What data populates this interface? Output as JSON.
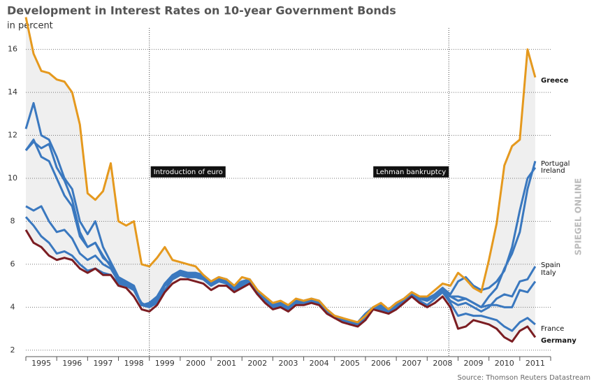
{
  "chart_data": {
    "type": "line",
    "title": "Development in Interest Rates on 10-year Government Bonds",
    "subtitle": "in percent",
    "source": "Source: Thomson Reuters Datastream",
    "watermark": "SPIEGEL ONLINE",
    "grid": true,
    "xlim": [
      1995,
      2012
    ],
    "xticks": [
      1995,
      1996,
      1997,
      1998,
      1999,
      2000,
      2001,
      2002,
      2003,
      2004,
      2005,
      2006,
      2007,
      2008,
      2009,
      2010,
      2011
    ],
    "ylim": [
      1.7,
      18.3
    ],
    "yticks": [
      2,
      4,
      6,
      8,
      10,
      12,
      14,
      16
    ],
    "annotations": [
      {
        "text": "Introduction of euro",
        "x": 1999,
        "y": 10.3
      },
      {
        "text": "Lehman bankruptcy",
        "x": 2008.7,
        "y": 10.3
      }
    ],
    "x": [
      1995,
      1995.25,
      1995.5,
      1995.75,
      1996,
      1996.25,
      1996.5,
      1996.75,
      1997,
      1997.25,
      1997.5,
      1997.75,
      1998,
      1998.25,
      1998.5,
      1998.75,
      1999,
      1999.25,
      1999.5,
      1999.75,
      2000,
      2000.25,
      2000.5,
      2000.75,
      2001,
      2001.25,
      2001.5,
      2001.75,
      2002,
      2002.25,
      2002.5,
      2002.75,
      2003,
      2003.25,
      2003.5,
      2003.75,
      2004,
      2004.25,
      2004.5,
      2004.75,
      2005,
      2005.25,
      2005.5,
      2005.75,
      2006,
      2006.25,
      2006.5,
      2006.75,
      2007,
      2007.25,
      2007.5,
      2007.75,
      2008,
      2008.25,
      2008.5,
      2008.75,
      2009,
      2009.25,
      2009.5,
      2009.75,
      2010,
      2010.25,
      2010.5,
      2010.75,
      2011,
      2011.25,
      2011.5
    ],
    "series": [
      {
        "name": "Greece",
        "color": "#e5991e",
        "values": [
          17.5,
          15.8,
          15.0,
          14.9,
          14.6,
          14.5,
          14.0,
          12.5,
          9.3,
          9.0,
          9.4,
          10.7,
          8.0,
          7.8,
          8.0,
          6.0,
          5.9,
          6.3,
          6.8,
          6.2,
          6.1,
          6.0,
          5.9,
          5.5,
          5.2,
          5.4,
          5.3,
          5.0,
          5.4,
          5.3,
          4.8,
          4.5,
          4.2,
          4.3,
          4.1,
          4.4,
          4.3,
          4.4,
          4.3,
          3.9,
          3.6,
          3.5,
          3.4,
          3.3,
          3.6,
          4.0,
          4.2,
          3.9,
          4.2,
          4.4,
          4.7,
          4.5,
          4.5,
          4.8,
          5.1,
          5.0,
          5.6,
          5.3,
          4.9,
          4.7,
          6.2,
          7.9,
          10.6,
          11.5,
          11.8,
          16.0,
          14.7
        ]
      },
      {
        "name": "Portugal",
        "color": "#3a78bf",
        "values": [
          11.3,
          11.7,
          11.4,
          11.6,
          10.5,
          9.9,
          9.0,
          7.5,
          6.8,
          7.0,
          6.3,
          6.0,
          5.3,
          5.1,
          4.9,
          4.1,
          4.2,
          4.5,
          5.1,
          5.4,
          5.6,
          5.6,
          5.5,
          5.4,
          5.1,
          5.3,
          5.3,
          5.0,
          5.2,
          5.2,
          4.8,
          4.4,
          4.1,
          4.2,
          4.0,
          4.3,
          4.2,
          4.3,
          4.2,
          3.8,
          3.5,
          3.4,
          3.2,
          3.3,
          3.6,
          3.9,
          4.0,
          3.8,
          4.1,
          4.3,
          4.6,
          4.4,
          4.3,
          4.5,
          4.8,
          4.5,
          4.3,
          4.4,
          4.2,
          4.0,
          4.5,
          4.9,
          5.8,
          6.5,
          7.5,
          9.5,
          10.8
        ]
      },
      {
        "name": "Ireland",
        "color": "#3a78bf",
        "values": [
          8.7,
          8.5,
          8.7,
          8.0,
          7.5,
          7.6,
          7.2,
          6.5,
          6.2,
          6.4,
          6.0,
          5.8,
          5.2,
          5.0,
          4.8,
          4.1,
          4.0,
          4.3,
          5.0,
          5.3,
          5.5,
          5.5,
          5.4,
          5.3,
          5.0,
          5.2,
          5.2,
          4.9,
          5.1,
          5.2,
          4.7,
          4.3,
          4.0,
          4.1,
          3.9,
          4.2,
          4.2,
          4.3,
          4.2,
          3.8,
          3.5,
          3.4,
          3.2,
          3.2,
          3.6,
          3.9,
          4.0,
          3.8,
          4.0,
          4.3,
          4.6,
          4.4,
          4.3,
          4.6,
          4.9,
          4.6,
          5.2,
          5.4,
          5.0,
          4.8,
          4.9,
          5.2,
          5.7,
          6.8,
          8.5,
          10.0,
          10.5
        ]
      },
      {
        "name": "Spain",
        "color": "#3a78bf",
        "values": [
          11.3,
          11.8,
          11.0,
          10.8,
          10.0,
          9.2,
          8.7,
          7.3,
          6.8,
          7.0,
          6.4,
          5.9,
          5.3,
          5.1,
          4.9,
          4.1,
          4.1,
          4.4,
          5.0,
          5.4,
          5.6,
          5.5,
          5.5,
          5.4,
          5.1,
          5.3,
          5.2,
          4.9,
          5.1,
          5.2,
          4.7,
          4.3,
          4.0,
          4.1,
          3.9,
          4.3,
          4.2,
          4.3,
          4.2,
          3.8,
          3.5,
          3.4,
          3.2,
          3.3,
          3.6,
          3.9,
          3.9,
          3.8,
          4.1,
          4.3,
          4.6,
          4.4,
          4.3,
          4.5,
          4.8,
          4.3,
          4.1,
          4.2,
          4.0,
          3.8,
          4.0,
          4.4,
          4.6,
          4.5,
          5.2,
          5.3,
          5.9
        ]
      },
      {
        "name": "Italy",
        "color": "#3a78bf",
        "values": [
          12.3,
          13.5,
          12.0,
          11.8,
          11.0,
          10.0,
          9.5,
          8.0,
          7.4,
          8.0,
          6.8,
          6.1,
          5.4,
          5.2,
          5.0,
          4.1,
          4.1,
          4.4,
          5.1,
          5.5,
          5.7,
          5.6,
          5.6,
          5.5,
          5.2,
          5.4,
          5.3,
          5.0,
          5.2,
          5.3,
          4.8,
          4.4,
          4.1,
          4.2,
          4.0,
          4.3,
          4.3,
          4.4,
          4.3,
          3.9,
          3.6,
          3.5,
          3.3,
          3.3,
          3.7,
          4.0,
          4.1,
          3.9,
          4.2,
          4.4,
          4.7,
          4.5,
          4.4,
          4.6,
          4.9,
          4.5,
          4.5,
          4.4,
          4.2,
          4.0,
          4.1,
          4.1,
          4.0,
          4.0,
          4.8,
          4.7,
          5.2
        ]
      },
      {
        "name": "France",
        "color": "#3a78bf",
        "values": [
          8.2,
          7.8,
          7.3,
          7.0,
          6.5,
          6.6,
          6.4,
          6.0,
          5.7,
          5.8,
          5.6,
          5.5,
          5.1,
          5.0,
          4.8,
          4.2,
          4.0,
          4.2,
          4.8,
          5.3,
          5.5,
          5.4,
          5.4,
          5.3,
          5.0,
          5.2,
          5.1,
          4.8,
          5.0,
          5.1,
          4.6,
          4.3,
          4.0,
          4.1,
          3.9,
          4.2,
          4.2,
          4.3,
          4.2,
          3.8,
          3.5,
          3.4,
          3.2,
          3.2,
          3.5,
          3.9,
          3.9,
          3.7,
          4.0,
          4.3,
          4.5,
          4.3,
          4.1,
          4.4,
          4.7,
          4.2,
          3.6,
          3.7,
          3.6,
          3.6,
          3.5,
          3.4,
          3.1,
          2.9,
          3.3,
          3.5,
          3.2
        ]
      },
      {
        "name": "Germany",
        "color": "#7b1d22",
        "values": [
          7.6,
          7.0,
          6.8,
          6.4,
          6.2,
          6.3,
          6.2,
          5.8,
          5.6,
          5.8,
          5.5,
          5.5,
          5.0,
          4.9,
          4.5,
          3.9,
          3.8,
          4.1,
          4.7,
          5.1,
          5.3,
          5.3,
          5.2,
          5.1,
          4.8,
          5.0,
          5.0,
          4.7,
          4.9,
          5.1,
          4.6,
          4.2,
          3.9,
          4.0,
          3.8,
          4.1,
          4.1,
          4.2,
          4.1,
          3.7,
          3.5,
          3.3,
          3.2,
          3.1,
          3.4,
          3.9,
          3.8,
          3.7,
          3.9,
          4.2,
          4.5,
          4.2,
          4.0,
          4.2,
          4.5,
          4.0,
          3.0,
          3.1,
          3.4,
          3.3,
          3.2,
          3.0,
          2.6,
          2.4,
          2.9,
          3.1,
          2.6
        ]
      }
    ]
  }
}
